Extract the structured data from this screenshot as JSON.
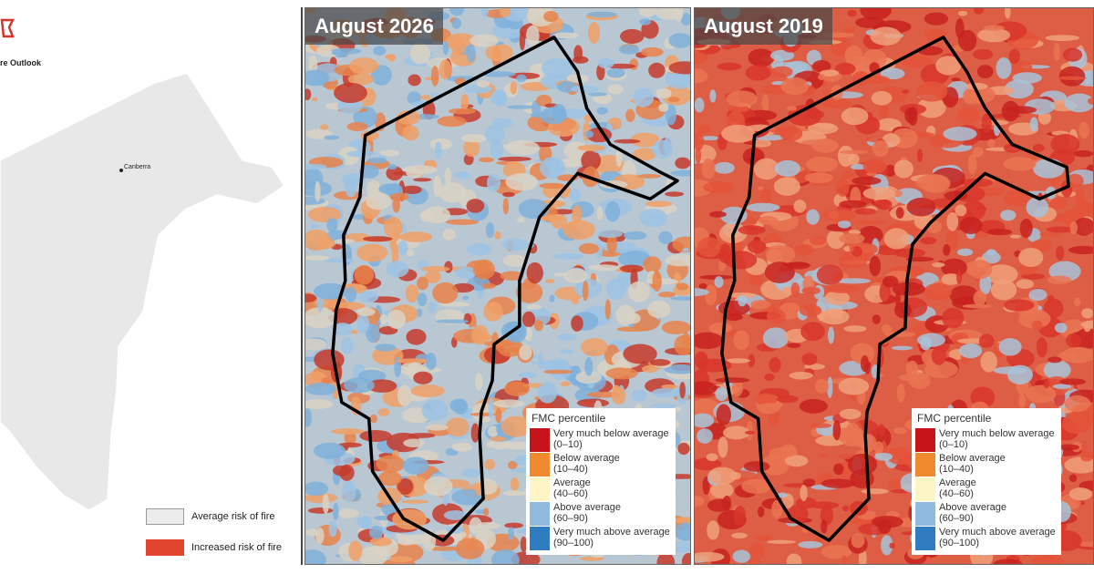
{
  "left_panel": {
    "title_fragment": "re Outlook",
    "city": "Canberra",
    "legend": [
      {
        "label": "Average risk of fire",
        "color": "#ececec"
      },
      {
        "label": "Increased risk of fire",
        "color": "#e0462f"
      }
    ]
  },
  "maps": [
    {
      "title": "August 2026",
      "dominant": "mixed",
      "colors": [
        "#7fb0da",
        "#9cc3e4",
        "#e8834a",
        "#f0a066",
        "#d9d2c4",
        "#c63a2a"
      ]
    },
    {
      "title": "August 2019",
      "dominant": "red",
      "colors": [
        "#d8352a",
        "#e4533a",
        "#ea7452",
        "#c7221f",
        "#a8c3d8",
        "#f0a07a"
      ]
    }
  ],
  "legend": {
    "title": "FMC percentile",
    "items": [
      {
        "label": "Very much below average",
        "range": "(0–10)",
        "color": "#c7141b"
      },
      {
        "label": "Below average",
        "range": "(10–40)",
        "color": "#f08a2e"
      },
      {
        "label": "Average",
        "range": "(40–60)",
        "color": "#fdf6c4"
      },
      {
        "label": "Above average",
        "range": "(60–90)",
        "color": "#8fb9de"
      },
      {
        "label": "Very much above average",
        "range": "(90–100)",
        "color": "#2f7cc0"
      }
    ]
  }
}
